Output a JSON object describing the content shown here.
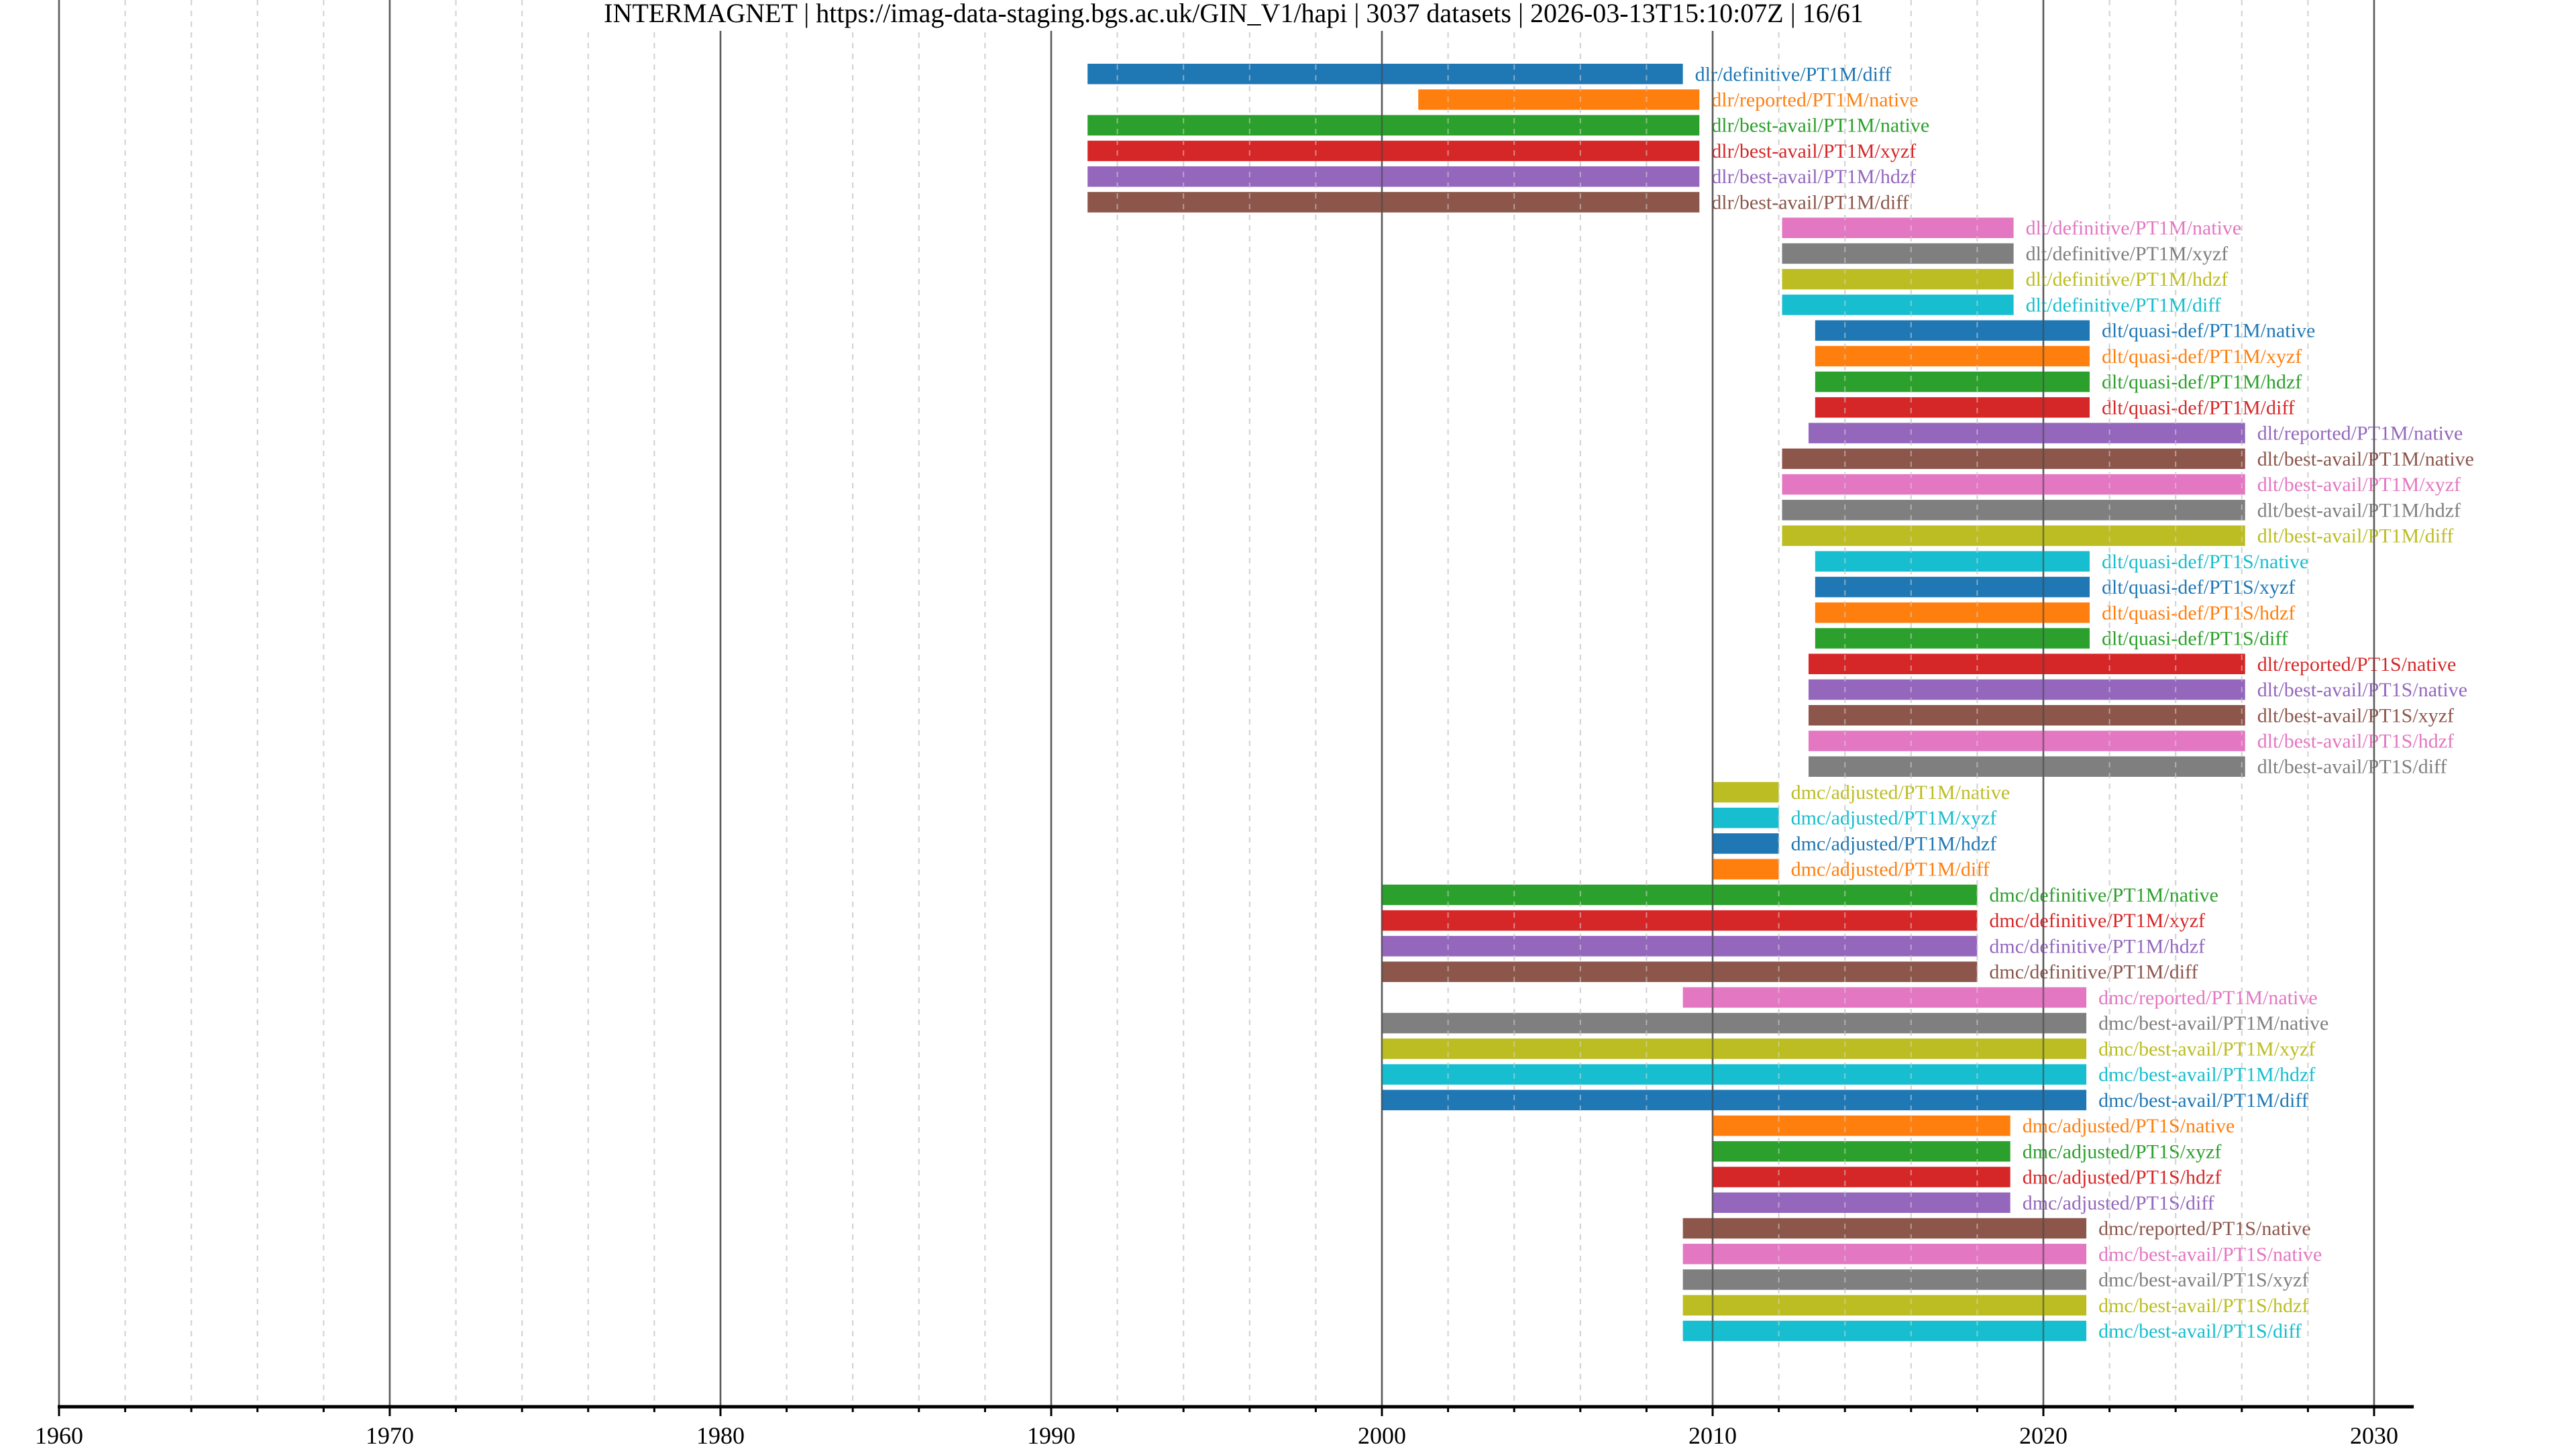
{
  "header": {
    "title": "INTERMAGNET | https://imag-data-staging.bgs.ac.uk/GIN_V1/hapi | 3037 datasets | 2026-03-13T15:10:07Z | 16/61"
  },
  "chart_data": {
    "type": "timeline",
    "title": "INTERMAGNET | https://imag-data-staging.bgs.ac.uk/GIN_V1/hapi | 3037 datasets | 2026-03-13T15:10:07Z | 16/61",
    "xlabel": "",
    "ylabel": "",
    "xlim": [
      1960,
      2031.2
    ],
    "x_major_ticks": [
      1960,
      1970,
      1980,
      1990,
      2000,
      2010,
      2020,
      2030
    ],
    "x_tick_labels": [
      "1960",
      "1970",
      "1980",
      "1990",
      "2000",
      "2010",
      "2020",
      "2030"
    ],
    "x_minor_step": 2,
    "grid": true,
    "palette": [
      "#1f77b4",
      "#ff7f0e",
      "#2ca02c",
      "#d62728",
      "#9467bd",
      "#8c564b",
      "#e377c2",
      "#7f7f7f",
      "#bcbd22",
      "#17becf"
    ],
    "series": [
      {
        "name": "dlr/definitive/PT1M/diff",
        "start": 1991.1,
        "end": 2009.1
      },
      {
        "name": "dlr/reported/PT1M/native",
        "start": 2001.1,
        "end": 2009.6
      },
      {
        "name": "dlr/best-avail/PT1M/native",
        "start": 1991.1,
        "end": 2009.6
      },
      {
        "name": "dlr/best-avail/PT1M/xyzf",
        "start": 1991.1,
        "end": 2009.6
      },
      {
        "name": "dlr/best-avail/PT1M/hdzf",
        "start": 1991.1,
        "end": 2009.6
      },
      {
        "name": "dlr/best-avail/PT1M/diff",
        "start": 1991.1,
        "end": 2009.6
      },
      {
        "name": "dlt/definitive/PT1M/native",
        "start": 2012.1,
        "end": 2019.1
      },
      {
        "name": "dlt/definitive/PT1M/xyzf",
        "start": 2012.1,
        "end": 2019.1
      },
      {
        "name": "dlt/definitive/PT1M/hdzf",
        "start": 2012.1,
        "end": 2019.1
      },
      {
        "name": "dlt/definitive/PT1M/diff",
        "start": 2012.1,
        "end": 2019.1
      },
      {
        "name": "dlt/quasi-def/PT1M/native",
        "start": 2013.1,
        "end": 2021.4
      },
      {
        "name": "dlt/quasi-def/PT1M/xyzf",
        "start": 2013.1,
        "end": 2021.4
      },
      {
        "name": "dlt/quasi-def/PT1M/hdzf",
        "start": 2013.1,
        "end": 2021.4
      },
      {
        "name": "dlt/quasi-def/PT1M/diff",
        "start": 2013.1,
        "end": 2021.4
      },
      {
        "name": "dlt/reported/PT1M/native",
        "start": 2012.9,
        "end": 2026.1
      },
      {
        "name": "dlt/best-avail/PT1M/native",
        "start": 2012.1,
        "end": 2026.1
      },
      {
        "name": "dlt/best-avail/PT1M/xyzf",
        "start": 2012.1,
        "end": 2026.1
      },
      {
        "name": "dlt/best-avail/PT1M/hdzf",
        "start": 2012.1,
        "end": 2026.1
      },
      {
        "name": "dlt/best-avail/PT1M/diff",
        "start": 2012.1,
        "end": 2026.1
      },
      {
        "name": "dlt/quasi-def/PT1S/native",
        "start": 2013.1,
        "end": 2021.4
      },
      {
        "name": "dlt/quasi-def/PT1S/xyzf",
        "start": 2013.1,
        "end": 2021.4
      },
      {
        "name": "dlt/quasi-def/PT1S/hdzf",
        "start": 2013.1,
        "end": 2021.4
      },
      {
        "name": "dlt/quasi-def/PT1S/diff",
        "start": 2013.1,
        "end": 2021.4
      },
      {
        "name": "dlt/reported/PT1S/native",
        "start": 2012.9,
        "end": 2026.1
      },
      {
        "name": "dlt/best-avail/PT1S/native",
        "start": 2012.9,
        "end": 2026.1
      },
      {
        "name": "dlt/best-avail/PT1S/xyzf",
        "start": 2012.9,
        "end": 2026.1
      },
      {
        "name": "dlt/best-avail/PT1S/hdzf",
        "start": 2012.9,
        "end": 2026.1
      },
      {
        "name": "dlt/best-avail/PT1S/diff",
        "start": 2012.9,
        "end": 2026.1
      },
      {
        "name": "dmc/adjusted/PT1M/native",
        "start": 2010.0,
        "end": 2012.0
      },
      {
        "name": "dmc/adjusted/PT1M/xyzf",
        "start": 2010.0,
        "end": 2012.0
      },
      {
        "name": "dmc/adjusted/PT1M/hdzf",
        "start": 2010.0,
        "end": 2012.0
      },
      {
        "name": "dmc/adjusted/PT1M/diff",
        "start": 2010.0,
        "end": 2012.0
      },
      {
        "name": "dmc/definitive/PT1M/native",
        "start": 2000.0,
        "end": 2018.0
      },
      {
        "name": "dmc/definitive/PT1M/xyzf",
        "start": 2000.0,
        "end": 2018.0
      },
      {
        "name": "dmc/definitive/PT1M/hdzf",
        "start": 2000.0,
        "end": 2018.0
      },
      {
        "name": "dmc/definitive/PT1M/diff",
        "start": 2000.0,
        "end": 2018.0
      },
      {
        "name": "dmc/reported/PT1M/native",
        "start": 2009.1,
        "end": 2021.3
      },
      {
        "name": "dmc/best-avail/PT1M/native",
        "start": 2000.0,
        "end": 2021.3
      },
      {
        "name": "dmc/best-avail/PT1M/xyzf",
        "start": 2000.0,
        "end": 2021.3
      },
      {
        "name": "dmc/best-avail/PT1M/hdzf",
        "start": 2000.0,
        "end": 2021.3
      },
      {
        "name": "dmc/best-avail/PT1M/diff",
        "start": 2000.0,
        "end": 2021.3
      },
      {
        "name": "dmc/adjusted/PT1S/native",
        "start": 2010.0,
        "end": 2019.0
      },
      {
        "name": "dmc/adjusted/PT1S/xyzf",
        "start": 2010.0,
        "end": 2019.0
      },
      {
        "name": "dmc/adjusted/PT1S/hdzf",
        "start": 2010.0,
        "end": 2019.0
      },
      {
        "name": "dmc/adjusted/PT1S/diff",
        "start": 2010.0,
        "end": 2019.0
      },
      {
        "name": "dmc/reported/PT1S/native",
        "start": 2009.1,
        "end": 2021.3
      },
      {
        "name": "dmc/best-avail/PT1S/native",
        "start": 2009.1,
        "end": 2021.3
      },
      {
        "name": "dmc/best-avail/PT1S/xyzf",
        "start": 2009.1,
        "end": 2021.3
      },
      {
        "name": "dmc/best-avail/PT1S/hdzf",
        "start": 2009.1,
        "end": 2021.3
      },
      {
        "name": "dmc/best-avail/PT1S/diff",
        "start": 2009.1,
        "end": 2021.3
      }
    ]
  }
}
